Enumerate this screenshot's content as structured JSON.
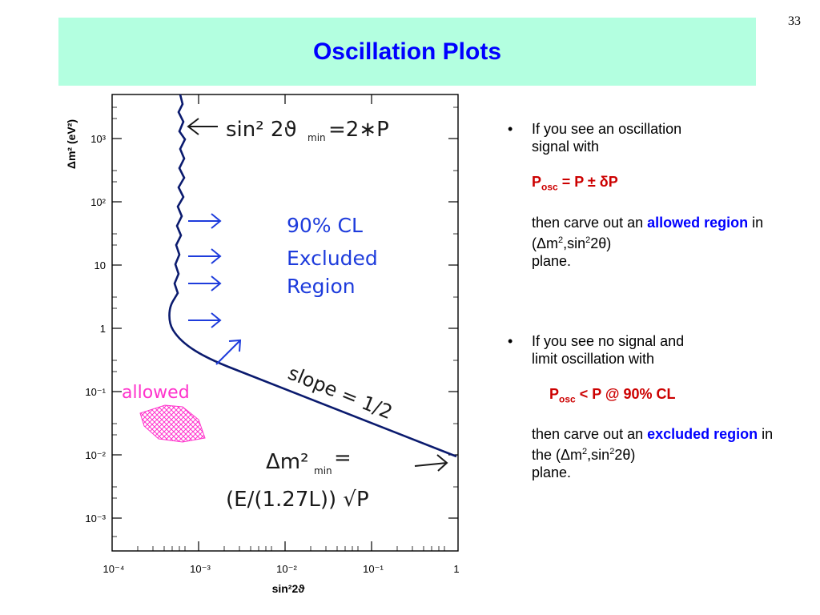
{
  "slide": {
    "number": "33",
    "title": "Oscillation Plots"
  },
  "plot": {
    "y_axis_label": "Δm² (eV²)",
    "x_axis_label": "sin²2ϑ",
    "y_ticks": [
      "10³",
      "10²",
      "10",
      "1",
      "10⁻¹",
      "10⁻²",
      "10⁻³"
    ],
    "x_ticks": [
      "10⁻⁴",
      "10⁻³",
      "10⁻²",
      "10⁻¹",
      "1"
    ],
    "annotations": {
      "sin_label": "sin² 2ϑ",
      "sin_sub": "min",
      "sin_rhs": "=2∗P",
      "cl": "90% CL",
      "excluded": "Excluded",
      "region": "Region",
      "allowed": "allowed",
      "slope": "slope = 1/2",
      "dm_label": "Δm²",
      "dm_sub": "min",
      "dm_eq": "=",
      "formula": "(E/(1.27L)) √P"
    },
    "colors": {
      "curve": "#0a1a6e",
      "annotation": "#1e3cdc",
      "allowed": "#ff33cc",
      "hand_ink": "#1a1a1a"
    }
  },
  "bullets": {
    "b1_line1": "If you see an oscillation",
    "b1_line2": "signal with",
    "f1_P": "P",
    "f1_sub": "osc",
    "f1_rest": " = P  ±  δP",
    "b1_c1": "then carve out an ",
    "b1_allowed": "allowed",
    "b1_region": "region",
    "b1_c2": " in (Δm",
    "b1_c3": ",sin",
    "b1_c4": "2θ)",
    "b1_c5": "plane.",
    "b2_line1": "If you see no signal and",
    "b2_line2": "limit oscillation with",
    "f2_P": "P",
    "f2_sub": "osc",
    "f2_rest": " < P  @ 90% CL",
    "b2_c1": "then carve out an ",
    "b2_excluded": "excluded",
    "b2_region": "region",
    "b2_c2": " in the (Δm",
    "b2_c3": ",sin",
    "b2_c4": "2θ)",
    "b2_c5": "plane."
  },
  "sup2": "2"
}
